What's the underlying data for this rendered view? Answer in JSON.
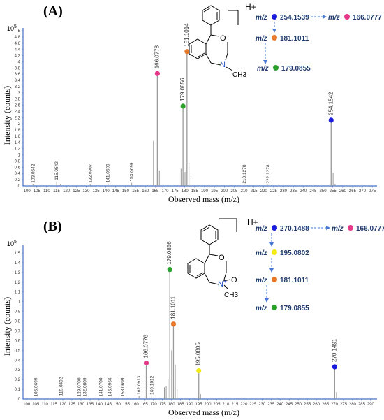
{
  "colors": {
    "axis": "#4472c4",
    "peak": "#9a9a9a",
    "blue": "#1a1adb",
    "pink": "#e8388a",
    "orange": "#e8782a",
    "green": "#2aa02a",
    "yellow": "#f2ea1a",
    "arrow": "#4a78d4"
  },
  "chart_data": [
    {
      "type": "bar",
      "panel_label": "(A)",
      "ylabel": "Intensity (counts)",
      "xlabel": "Observed mass (m/z)",
      "y_exponent": "10",
      "y_exponent_power": "5",
      "xlim": [
        98,
        276
      ],
      "ylim": [
        0,
        5.0
      ],
      "x_ticks": [
        "100",
        "105",
        "110",
        "115",
        "120",
        "125",
        "130",
        "135",
        "140",
        "145",
        "150",
        "155",
        "160",
        "165",
        "170",
        "175",
        "180",
        "185",
        "190",
        "195",
        "200",
        "205",
        "210",
        "215",
        "220",
        "225",
        "230",
        "235",
        "240",
        "245",
        "250",
        "255",
        "260",
        "265",
        "270",
        "275"
      ],
      "y_ticks": [
        "0",
        "0.2",
        "0.4",
        "0.6",
        "0.8",
        "1",
        "1.2",
        "1.4",
        "1.6",
        "1.8",
        "2",
        "2.2",
        "2.4",
        "2.6",
        "2.8",
        "3",
        "3.2",
        "3.4",
        "3.6",
        "3.8",
        "4",
        "4.2",
        "4.4",
        "4.6",
        "4.8",
        "5"
      ],
      "peaks": [
        {
          "x": 103.0542,
          "y": 0.05,
          "label": "103.0542"
        },
        {
          "x": 115.0542,
          "y": 0.14,
          "label": "115.0542"
        },
        {
          "x": 117.0,
          "y": 0.06,
          "label": ""
        },
        {
          "x": 132.0807,
          "y": 0.05,
          "label": "132.0807"
        },
        {
          "x": 141.0699,
          "y": 0.06,
          "label": "141.0699"
        },
        {
          "x": 153.0699,
          "y": 0.1,
          "label": "153.0699"
        },
        {
          "x": 164.1,
          "y": 1.45,
          "label": ""
        },
        {
          "x": 166.0778,
          "y": 3.62,
          "label": "166.0778",
          "marker": "pink"
        },
        {
          "x": 167.1,
          "y": 0.5,
          "label": ""
        },
        {
          "x": 177.1,
          "y": 0.42,
          "label": ""
        },
        {
          "x": 178.1,
          "y": 0.55,
          "label": ""
        },
        {
          "x": 179.0856,
          "y": 2.57,
          "label": "179.0856",
          "marker": "green"
        },
        {
          "x": 180.1,
          "y": 0.45,
          "label": ""
        },
        {
          "x": 181.1014,
          "y": 4.33,
          "label": "181.1014",
          "marker": "orange"
        },
        {
          "x": 182.1,
          "y": 0.75,
          "label": ""
        },
        {
          "x": 183.1,
          "y": 0.25,
          "label": ""
        },
        {
          "x": 210.1278,
          "y": 0.03,
          "label": "210.1278"
        },
        {
          "x": 222.1278,
          "y": 0.03,
          "label": "222.1278"
        },
        {
          "x": 254.1542,
          "y": 2.12,
          "label": "254.1542",
          "marker": "blue"
        },
        {
          "x": 255.16,
          "y": 0.42,
          "label": ""
        },
        {
          "x": 256.16,
          "y": 0.05,
          "label": ""
        }
      ],
      "fragmentation": {
        "hplus": "H+",
        "mz": "m/z",
        "steps": [
          {
            "value": "254.1539",
            "marker": "blue"
          },
          {
            "value": "166.0777",
            "marker": "pink"
          },
          {
            "value": "181.1011",
            "marker": "orange"
          },
          {
            "value": "179.0855",
            "marker": "green"
          }
        ]
      },
      "structure": {
        "o_atom": "O",
        "n_atom": "N",
        "methyl": "CH3"
      }
    },
    {
      "type": "bar",
      "panel_label": "(B)",
      "ylabel": "Intensity (counts)",
      "xlabel": "Observed mass (m/z)",
      "y_exponent": "10",
      "y_exponent_power": "5",
      "xlim": [
        98,
        292
      ],
      "ylim": [
        0,
        1.55
      ],
      "x_ticks": [
        "100",
        "105",
        "110",
        "115",
        "120",
        "125",
        "130",
        "135",
        "140",
        "145",
        "150",
        "155",
        "160",
        "165",
        "170",
        "175",
        "180",
        "185",
        "190",
        "195",
        "200",
        "205",
        "210",
        "215",
        "220",
        "225",
        "230",
        "235",
        "240",
        "245",
        "250",
        "255",
        "260",
        "265",
        "270",
        "275",
        "280",
        "285",
        "290"
      ],
      "y_ticks": [
        "0",
        "0.1",
        "0.2",
        "0.3",
        "0.4",
        "0.5",
        "0.6",
        "0.7",
        "0.8",
        "0.9",
        "1",
        "1.1",
        "1.2",
        "1.3",
        "1.4",
        "1.5"
      ],
      "peaks": [
        {
          "x": 105.0699,
          "y": 0.01,
          "label": "105.0699"
        },
        {
          "x": 119.0492,
          "y": 0.02,
          "label": "119.0492"
        },
        {
          "x": 129.07,
          "y": 0.01,
          "label": "129.0700"
        },
        {
          "x": 132.0809,
          "y": 0.01,
          "label": "132.0809"
        },
        {
          "x": 141.07,
          "y": 0.01,
          "label": "141.0700"
        },
        {
          "x": 146.0966,
          "y": 0.01,
          "label": "146.0966"
        },
        {
          "x": 153.0699,
          "y": 0.01,
          "label": "153.0699"
        },
        {
          "x": 162.0913,
          "y": 0.03,
          "label": "162.0913"
        },
        {
          "x": 166.0776,
          "y": 0.37,
          "label": "166.0776",
          "marker": "pink"
        },
        {
          "x": 169.1012,
          "y": 0.03,
          "label": "169.1012"
        },
        {
          "x": 176.1,
          "y": 0.12,
          "label": ""
        },
        {
          "x": 177.1,
          "y": 0.13,
          "label": ""
        },
        {
          "x": 178.1,
          "y": 0.2,
          "label": ""
        },
        {
          "x": 179.0856,
          "y": 1.33,
          "label": "179.0856",
          "marker": "green"
        },
        {
          "x": 180.09,
          "y": 0.5,
          "label": ""
        },
        {
          "x": 181.1011,
          "y": 0.77,
          "label": "181.1011",
          "marker": "orange"
        },
        {
          "x": 182.1,
          "y": 0.35,
          "label": ""
        },
        {
          "x": 183.1,
          "y": 0.1,
          "label": ""
        },
        {
          "x": 195.0805,
          "y": 0.29,
          "label": "195.0805",
          "marker": "yellow"
        },
        {
          "x": 196.08,
          "y": 0.05,
          "label": ""
        },
        {
          "x": 270.1491,
          "y": 0.33,
          "label": "270.1491",
          "marker": "blue"
        },
        {
          "x": 271.15,
          "y": 0.07,
          "label": ""
        }
      ],
      "fragmentation": {
        "hplus": "H+",
        "mz": "m/z",
        "steps": [
          {
            "value": "270.1488",
            "marker": "blue"
          },
          {
            "value": "166.0777",
            "marker": "pink"
          },
          {
            "value": "195.0802",
            "marker": "yellow"
          },
          {
            "value": "181.1011",
            "marker": "orange"
          },
          {
            "value": "179.0855",
            "marker": "green"
          }
        ]
      },
      "structure": {
        "o_atom": "O",
        "n_atom": "N",
        "n_plus": "+",
        "oxide": "O",
        "oxide_minus": "−",
        "methyl": "CH3"
      }
    }
  ]
}
